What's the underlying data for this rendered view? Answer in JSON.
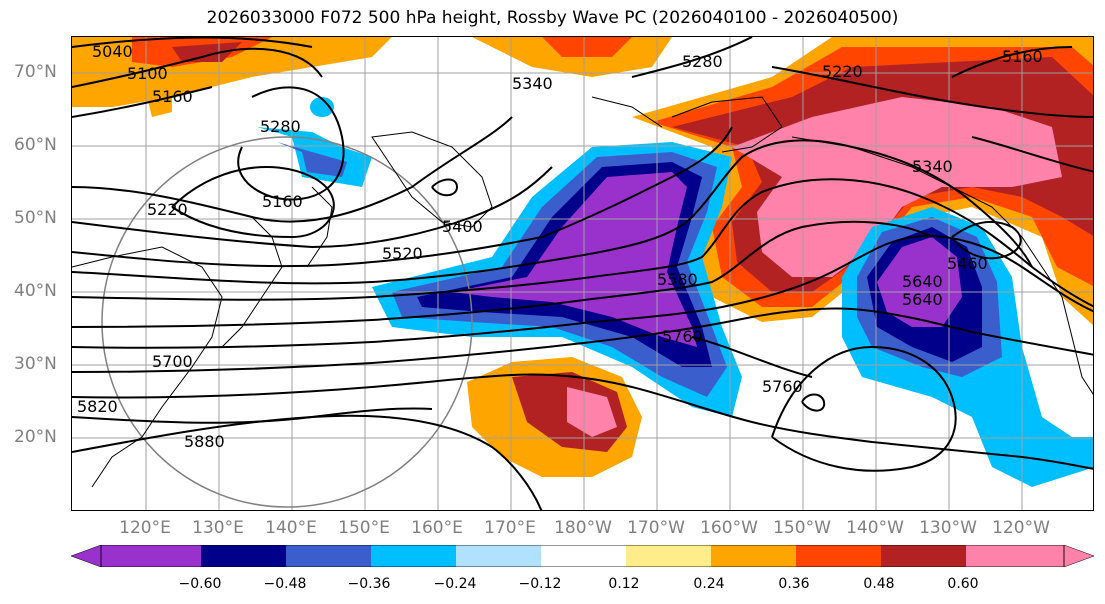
{
  "title": "2026033000 F072 500 hPa height, Rossby Wave PC (2026040100 - 2026040500)",
  "lat_labels": [
    "70°N",
    "60°N",
    "50°N",
    "40°N",
    "30°N",
    "20°N"
  ],
  "lon_labels": [
    "120°E",
    "130°E",
    "140°E",
    "150°E",
    "160°E",
    "170°E",
    "180°W",
    "170°W",
    "160°W",
    "150°W",
    "140°W",
    "130°W",
    "120°W"
  ],
  "contour_labels": [
    "5040",
    "5100",
    "5160",
    "5280",
    "5340",
    "5280",
    "5220",
    "5160",
    "5220",
    "5160",
    "5340",
    "5400",
    "5520",
    "5580",
    "5640",
    "5760",
    "5760",
    "5700",
    "5820",
    "5880",
    "5460",
    "5640"
  ],
  "colorbar": {
    "colors": [
      "#9932cc",
      "#00008b",
      "#3a5fcd",
      "#00bfff",
      "#b0e2ff",
      "#ffffff",
      "#ffec8b",
      "#ffa500",
      "#ff4500",
      "#b22222",
      "#ff82ab"
    ],
    "ticks": [
      "−0.60",
      "−0.48",
      "−0.36",
      "−0.24",
      "−0.12",
      "0.12",
      "0.24",
      "0.36",
      "0.48",
      "0.60"
    ]
  },
  "map": {
    "region": "North Pacific",
    "field": "500 hPa height contours with Rossby Wave PC shading"
  }
}
